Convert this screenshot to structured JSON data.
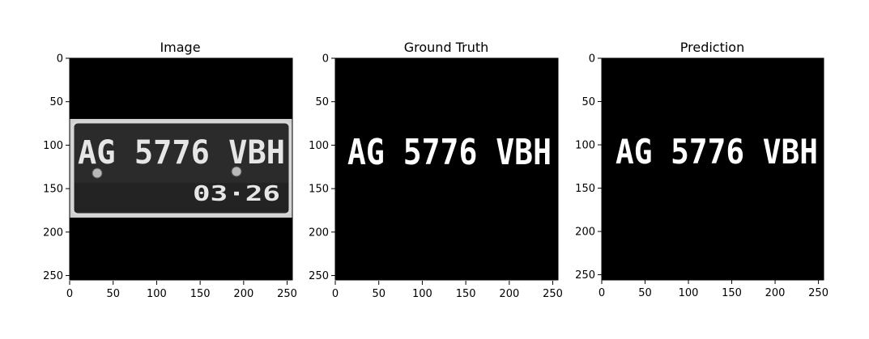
{
  "chart_data": [
    {
      "type": "image",
      "title": "Image",
      "xlim": [
        0,
        256
      ],
      "ylim": [
        256,
        0
      ],
      "xticks": [
        0,
        50,
        100,
        150,
        200,
        250
      ],
      "yticks": [
        0,
        50,
        100,
        150,
        200,
        250
      ],
      "content": {
        "plate_line1": "AG 5776 VBH",
        "plate_line2": "03·26",
        "plate_y_range": [
          70,
          184
        ]
      }
    },
    {
      "type": "image",
      "title": "Ground Truth",
      "xlim": [
        0,
        256
      ],
      "ylim": [
        256,
        0
      ],
      "xticks": [
        0,
        50,
        100,
        150,
        200,
        250
      ],
      "yticks": [
        0,
        50,
        100,
        150,
        200,
        250
      ],
      "content": {
        "mask_text": "AG 5776 VBH"
      }
    },
    {
      "type": "image",
      "title": "Prediction",
      "xlim": [
        0,
        256
      ],
      "ylim": [
        256,
        0
      ],
      "xticks": [
        0,
        50,
        100,
        150,
        200,
        250
      ],
      "yticks": [
        0,
        50,
        100,
        150,
        200,
        250
      ],
      "content": {
        "mask_text": "AG 5776 VBH"
      }
    }
  ]
}
